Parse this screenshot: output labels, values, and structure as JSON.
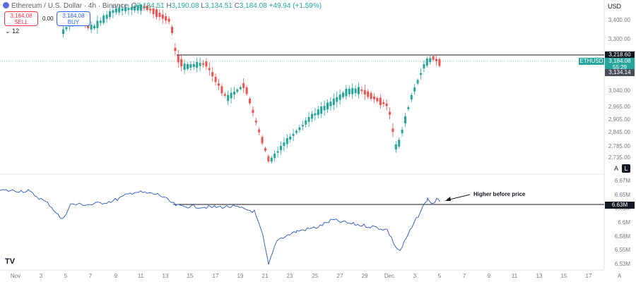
{
  "header": {
    "symbol_title": "Ethereum / U.S. Dollar · 4h · Binance",
    "ohlc": {
      "o_label": "O",
      "o": "3,134.51",
      "h_label": "H",
      "h": "3,190.08",
      "l_label": "L",
      "l": "3,134.51",
      "c_label": "C",
      "c": "3,184.08",
      "change": "+49.94 (+1.59%)"
    }
  },
  "trade": {
    "sell_price": "3,184.08",
    "sell_label": "SELL",
    "spread": "0.00",
    "buy_price": "3,184.08",
    "buy_label": "BUY",
    "volume_toggle": "12"
  },
  "currency": "USD",
  "price_axis": {
    "ticks": [
      "3,400.00",
      "3,300.00",
      "3,040.00",
      "2,965.00",
      "2,905.00",
      "2,845.00",
      "2,785.00",
      "2,735.00"
    ],
    "level_tag": "3,218.60",
    "symbol_tag": "ETHUSD",
    "last_price": "3,184.08",
    "countdown": "55:29",
    "low_tag": "3,134.14"
  },
  "indicator_axis": {
    "ticks": [
      "6.67M",
      "6.65M",
      "6.63M",
      "6.6M",
      "6.58M",
      "6.55M",
      "6.53M"
    ],
    "level_tag": "6.63M"
  },
  "scale_buttons": {
    "auto": "A",
    "log": "L"
  },
  "annotation": "Higher before price",
  "time_axis": [
    "Nov",
    "3",
    "5",
    "7",
    "9",
    "11",
    "13",
    "15",
    "17",
    "19",
    "21",
    "23",
    "25",
    "27",
    "29",
    "Dec",
    "3",
    "5",
    "7",
    "9",
    "11",
    "13",
    "15",
    "17"
  ],
  "logo": "TV",
  "corner": "A",
  "colors": {
    "up": "#26a69a",
    "down": "#ef5350",
    "indicator": "#3a66c4",
    "tag_dark": "#131722",
    "last_price": "#26a69a"
  }
}
